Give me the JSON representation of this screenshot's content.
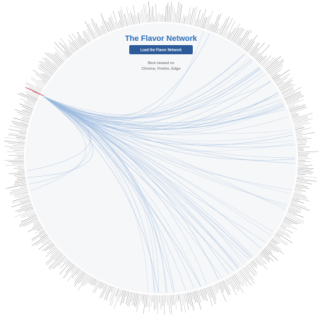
{
  "header": {
    "title": "The Flavor Network",
    "button": "Load the Flavor Network",
    "note": [
      "Best viewed on",
      "Chrome, Firefox, Edge"
    ]
  }
}
